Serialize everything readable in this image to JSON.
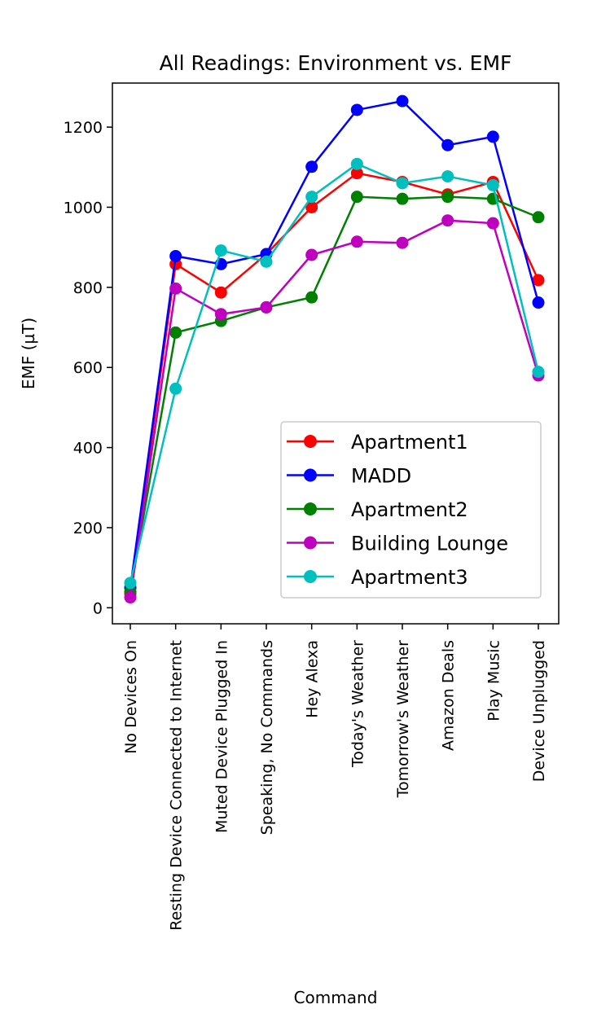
{
  "chart_data": {
    "type": "line",
    "title": "All Readings: Environment vs. EMF",
    "xlabel": "Command",
    "ylabel": "EMF (µT)",
    "ylim": [
      -40,
      1310
    ],
    "yticks": [
      0,
      200,
      400,
      600,
      800,
      1000,
      1200
    ],
    "categories": [
      "No Devices On",
      "Resting Device Connected to Internet",
      "Muted Device Plugged In",
      "Speaking, No Commands",
      "Hey Alexa",
      "Today's Weather",
      "Tomorrow's Weather",
      "Amazon Deals",
      "Play Music",
      "Device Unplugged"
    ],
    "legend_position": "lower-right",
    "grid": false,
    "series": [
      {
        "name": "Apartment1",
        "color": "#ff0000",
        "values": [
          35,
          858,
          787,
          883,
          1000,
          1085,
          1063,
          1032,
          1063,
          818
        ]
      },
      {
        "name": "MADD",
        "color": "#0000ff",
        "values": [
          50,
          878,
          858,
          883,
          1101,
          1243,
          1265,
          1155,
          1176,
          762
        ]
      },
      {
        "name": "Apartment2",
        "color": "#008000",
        "values": [
          40,
          687,
          716,
          750,
          775,
          1026,
          1021,
          1026,
          1021,
          975
        ]
      },
      {
        "name": "Building Lounge",
        "color": "#bf00bf",
        "values": [
          26,
          797,
          733,
          750,
          881,
          914,
          911,
          967,
          960,
          580
        ]
      },
      {
        "name": "Apartment3",
        "color": "#00bfbf",
        "values": [
          62,
          547,
          892,
          864,
          1026,
          1108,
          1060,
          1077,
          1055,
          589
        ]
      }
    ]
  }
}
